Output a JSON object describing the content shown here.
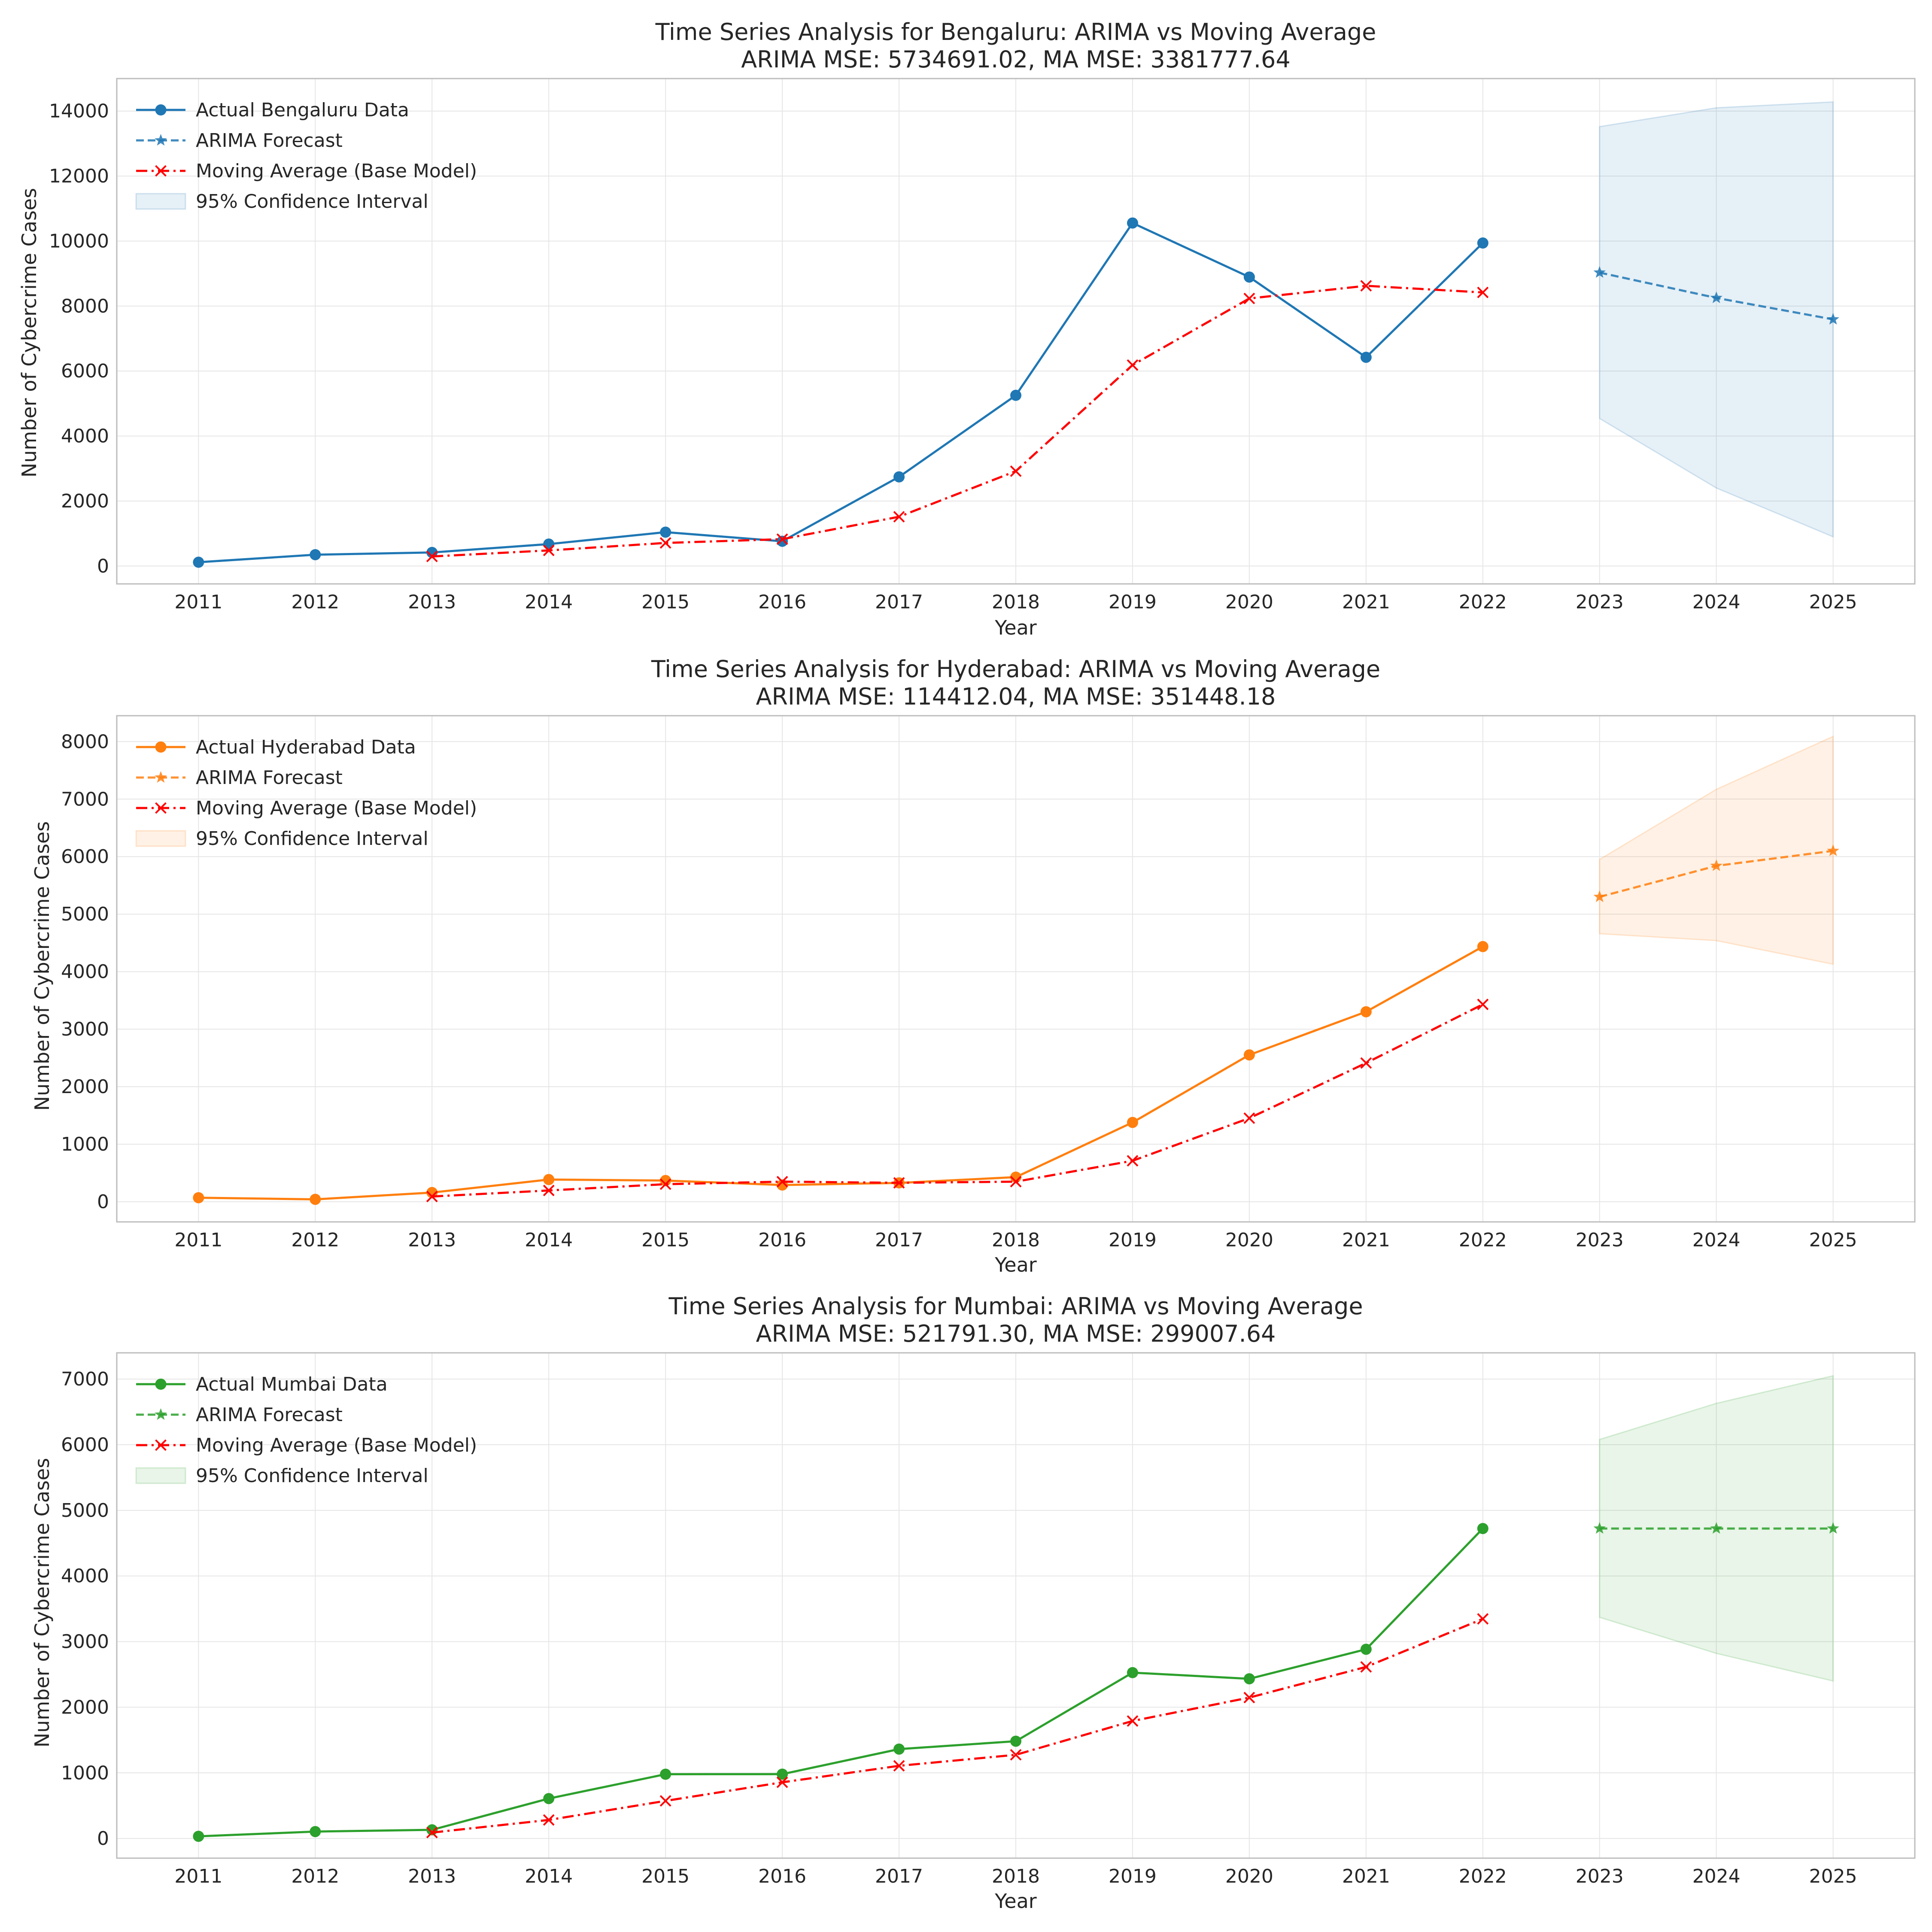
{
  "chart_data": [
    {
      "type": "line",
      "title": "Time Series Analysis for Bengaluru: ARIMA vs Moving Average",
      "subtitle": "ARIMA MSE: 5734691.02, MA MSE: 3381777.64",
      "xlabel": "Year",
      "ylabel": "Number of Cybercrime Cases",
      "x_ticks": [
        2011,
        2012,
        2013,
        2014,
        2015,
        2016,
        2017,
        2018,
        2019,
        2020,
        2021,
        2022,
        2023,
        2024,
        2025
      ],
      "y_ticks": [
        0,
        2000,
        4000,
        6000,
        8000,
        10000,
        12000,
        14000
      ],
      "ylim": [
        -550,
        15000
      ],
      "xlim": [
        2010.3,
        2025.7
      ],
      "grid": true,
      "legend_position": "top-left",
      "color": "#1f77b4",
      "ma_color": "#ff0000",
      "series": [
        {
          "name": "Actual Bengaluru Data",
          "style": "solid-circle",
          "x": [
            2011,
            2012,
            2013,
            2014,
            2015,
            2016,
            2017,
            2018,
            2019,
            2020,
            2021,
            2022
          ],
          "y": [
            117,
            349,
            417,
            675,
            1042,
            762,
            2743,
            5253,
            10555,
            8892,
            6423,
            9940
          ]
        },
        {
          "name": "ARIMA Forecast",
          "style": "dashed-star",
          "x": [
            2023,
            2024,
            2025
          ],
          "y": [
            9030,
            8250,
            7590
          ]
        },
        {
          "name": "Moving Average (Base Model)",
          "style": "dashdot-x",
          "x": [
            2013,
            2014,
            2015,
            2016,
            2017,
            2018,
            2019,
            2020,
            2021,
            2022
          ],
          "y": [
            294,
            480,
            711,
            826,
            1516,
            2919,
            6184,
            8233,
            8623,
            8418
          ]
        },
        {
          "name": "95% Confidence Interval",
          "style": "band",
          "x": [
            2023,
            2024,
            2025
          ],
          "lower": [
            4540,
            2400,
            900
          ],
          "upper": [
            13520,
            14100,
            14280
          ]
        }
      ]
    },
    {
      "type": "line",
      "title": "Time Series Analysis for Hyderabad: ARIMA vs Moving Average",
      "subtitle": "ARIMA MSE: 114412.04, MA MSE: 351448.18",
      "xlabel": "Year",
      "ylabel": "Number of Cybercrime Cases",
      "x_ticks": [
        2011,
        2012,
        2013,
        2014,
        2015,
        2016,
        2017,
        2018,
        2019,
        2020,
        2021,
        2022,
        2023,
        2024,
        2025
      ],
      "y_ticks": [
        0,
        1000,
        2000,
        3000,
        4000,
        5000,
        6000,
        7000,
        8000
      ],
      "ylim": [
        -350,
        8450
      ],
      "xlim": [
        2010.3,
        2025.7
      ],
      "grid": true,
      "legend_position": "top-left",
      "color": "#ff7f0e",
      "ma_color": "#ff0000",
      "series": [
        {
          "name": "Actual Hyderabad Data",
          "style": "solid-circle",
          "x": [
            2011,
            2012,
            2013,
            2014,
            2015,
            2016,
            2017,
            2018,
            2019,
            2020,
            2021,
            2022
          ],
          "y": [
            70,
            42,
            160,
            386,
            369,
            291,
            328,
            428,
            1379,
            2553,
            3303,
            4436
          ]
        },
        {
          "name": "ARIMA Forecast",
          "style": "dashed-star",
          "x": [
            2023,
            2024,
            2025
          ],
          "y": [
            5300,
            5840,
            6100
          ]
        },
        {
          "name": "Moving Average (Base Model)",
          "style": "dashdot-x",
          "x": [
            2013,
            2014,
            2015,
            2016,
            2017,
            2018,
            2019,
            2020,
            2021,
            2022
          ],
          "y": [
            91,
            196,
            305,
            349,
            329,
            349,
            712,
            1453,
            2412,
            3431
          ]
        },
        {
          "name": "95% Confidence Interval",
          "style": "band",
          "x": [
            2023,
            2024,
            2025
          ],
          "lower": [
            4660,
            4540,
            4130
          ],
          "upper": [
            5950,
            7170,
            8090
          ]
        }
      ]
    },
    {
      "type": "line",
      "title": "Time Series Analysis for Mumbai: ARIMA vs Moving Average",
      "subtitle": "ARIMA MSE: 521791.30, MA MSE: 299007.64",
      "xlabel": "Year",
      "ylabel": "Number of Cybercrime Cases",
      "x_ticks": [
        2011,
        2012,
        2013,
        2014,
        2015,
        2016,
        2017,
        2018,
        2019,
        2020,
        2021,
        2022,
        2023,
        2024,
        2025
      ],
      "y_ticks": [
        0,
        1000,
        2000,
        3000,
        4000,
        5000,
        6000,
        7000
      ],
      "ylim": [
        -300,
        7400
      ],
      "xlim": [
        2010.3,
        2025.7
      ],
      "grid": true,
      "legend_position": "top-left",
      "color": "#2ca02c",
      "ma_color": "#ff0000",
      "series": [
        {
          "name": "Actual Mumbai Data",
          "style": "solid-circle",
          "x": [
            2011,
            2012,
            2013,
            2014,
            2015,
            2016,
            2017,
            2018,
            2019,
            2020,
            2021,
            2022
          ],
          "y": [
            33,
            105,
            132,
            608,
            979,
            980,
            1362,
            1482,
            2527,
            2433,
            2883,
            4723
          ]
        },
        {
          "name": "ARIMA Forecast",
          "style": "dashed-star",
          "x": [
            2023,
            2024,
            2025
          ],
          "y": [
            4723,
            4723,
            4723
          ]
        },
        {
          "name": "Moving Average (Base Model)",
          "style": "dashdot-x",
          "x": [
            2013,
            2014,
            2015,
            2016,
            2017,
            2018,
            2019,
            2020,
            2021,
            2022
          ],
          "y": [
            90,
            282,
            573,
            856,
            1107,
            1275,
            1790,
            2147,
            2614,
            3346
          ]
        },
        {
          "name": "95% Confidence Interval",
          "style": "band",
          "x": [
            2023,
            2024,
            2025
          ],
          "lower": [
            3370,
            2820,
            2400
          ],
          "upper": [
            6080,
            6630,
            7050
          ]
        }
      ]
    }
  ]
}
